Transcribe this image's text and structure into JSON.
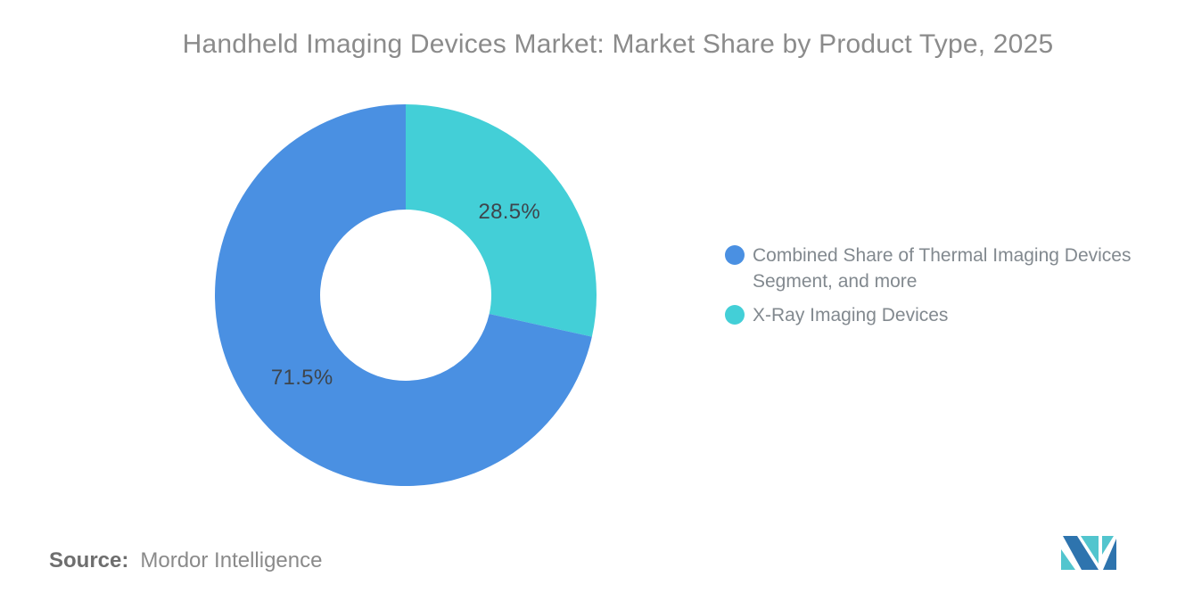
{
  "title": "Handheld Imaging Devices Market: Market Share by Product Type, 2025",
  "source": {
    "label": "Source:",
    "value": "Mordor Intelligence"
  },
  "legend": {
    "items": [
      {
        "label": "Combined Share of Thermal Imaging Devices Segment, and more",
        "color": "#4A90E2"
      },
      {
        "label": "X-Ray Imaging Devices",
        "color": "#43CFD7"
      }
    ]
  },
  "chart_data": {
    "type": "pie",
    "subtype": "donut",
    "title": "Handheld Imaging Devices Market: Market Share by Product Type, 2025",
    "start_angle_deg": 0,
    "direction": "clockwise",
    "inner_radius_ratio": 0.45,
    "legend_position": "right",
    "slices": [
      {
        "label": "X-Ray Imaging Devices",
        "value": 28.5,
        "display": "28.5%",
        "color": "#43CFD7"
      },
      {
        "label": "Combined Share of Thermal Imaging Devices Segment, and more",
        "value": 71.5,
        "display": "71.5%",
        "color": "#4A90E2"
      }
    ]
  },
  "logo_colors": {
    "blue": "#2E74AE",
    "teal": "#52C5CE"
  }
}
